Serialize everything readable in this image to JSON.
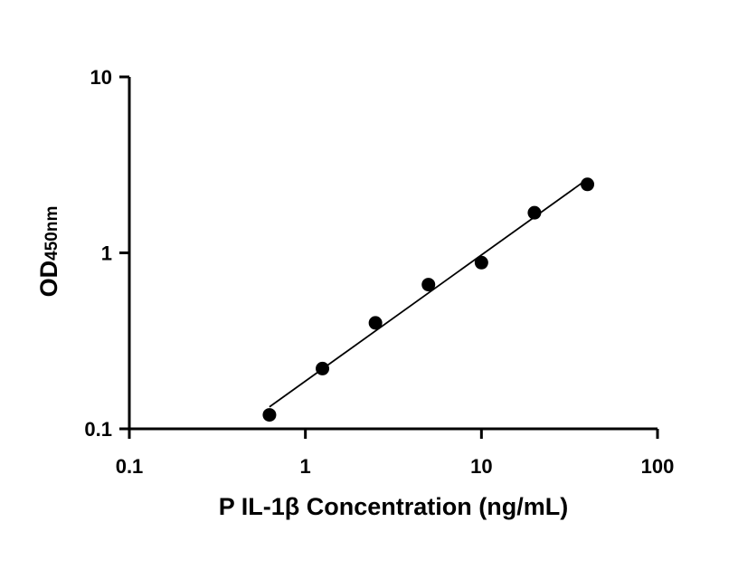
{
  "chart_data": {
    "type": "scatter",
    "title": "",
    "xlabel": "P IL-1β Concentration (ng/mL)",
    "ylabel_main": "OD",
    "ylabel_sub": "450nm",
    "x_scale": "log",
    "y_scale": "log",
    "xlim": [
      0.1,
      100
    ],
    "ylim": [
      0.1,
      10
    ],
    "x_ticks": [
      {
        "value": 0.1,
        "label": "0.1"
      },
      {
        "value": 1,
        "label": "1"
      },
      {
        "value": 10,
        "label": "10"
      },
      {
        "value": 100,
        "label": "100"
      }
    ],
    "y_ticks": [
      {
        "value": 0.1,
        "label": "0.1"
      },
      {
        "value": 1,
        "label": "1"
      },
      {
        "value": 10,
        "label": "10"
      }
    ],
    "grid": false,
    "series": [
      {
        "x": [
          0.625,
          1.25,
          2.5,
          5,
          10,
          20,
          40
        ],
        "y": [
          0.12,
          0.22,
          0.4,
          0.66,
          0.88,
          1.69,
          2.45
        ],
        "marker": "circle",
        "fit_line": true
      }
    ],
    "colors": {
      "marker": "#000000",
      "line": "#000000",
      "axis": "#000000"
    }
  }
}
